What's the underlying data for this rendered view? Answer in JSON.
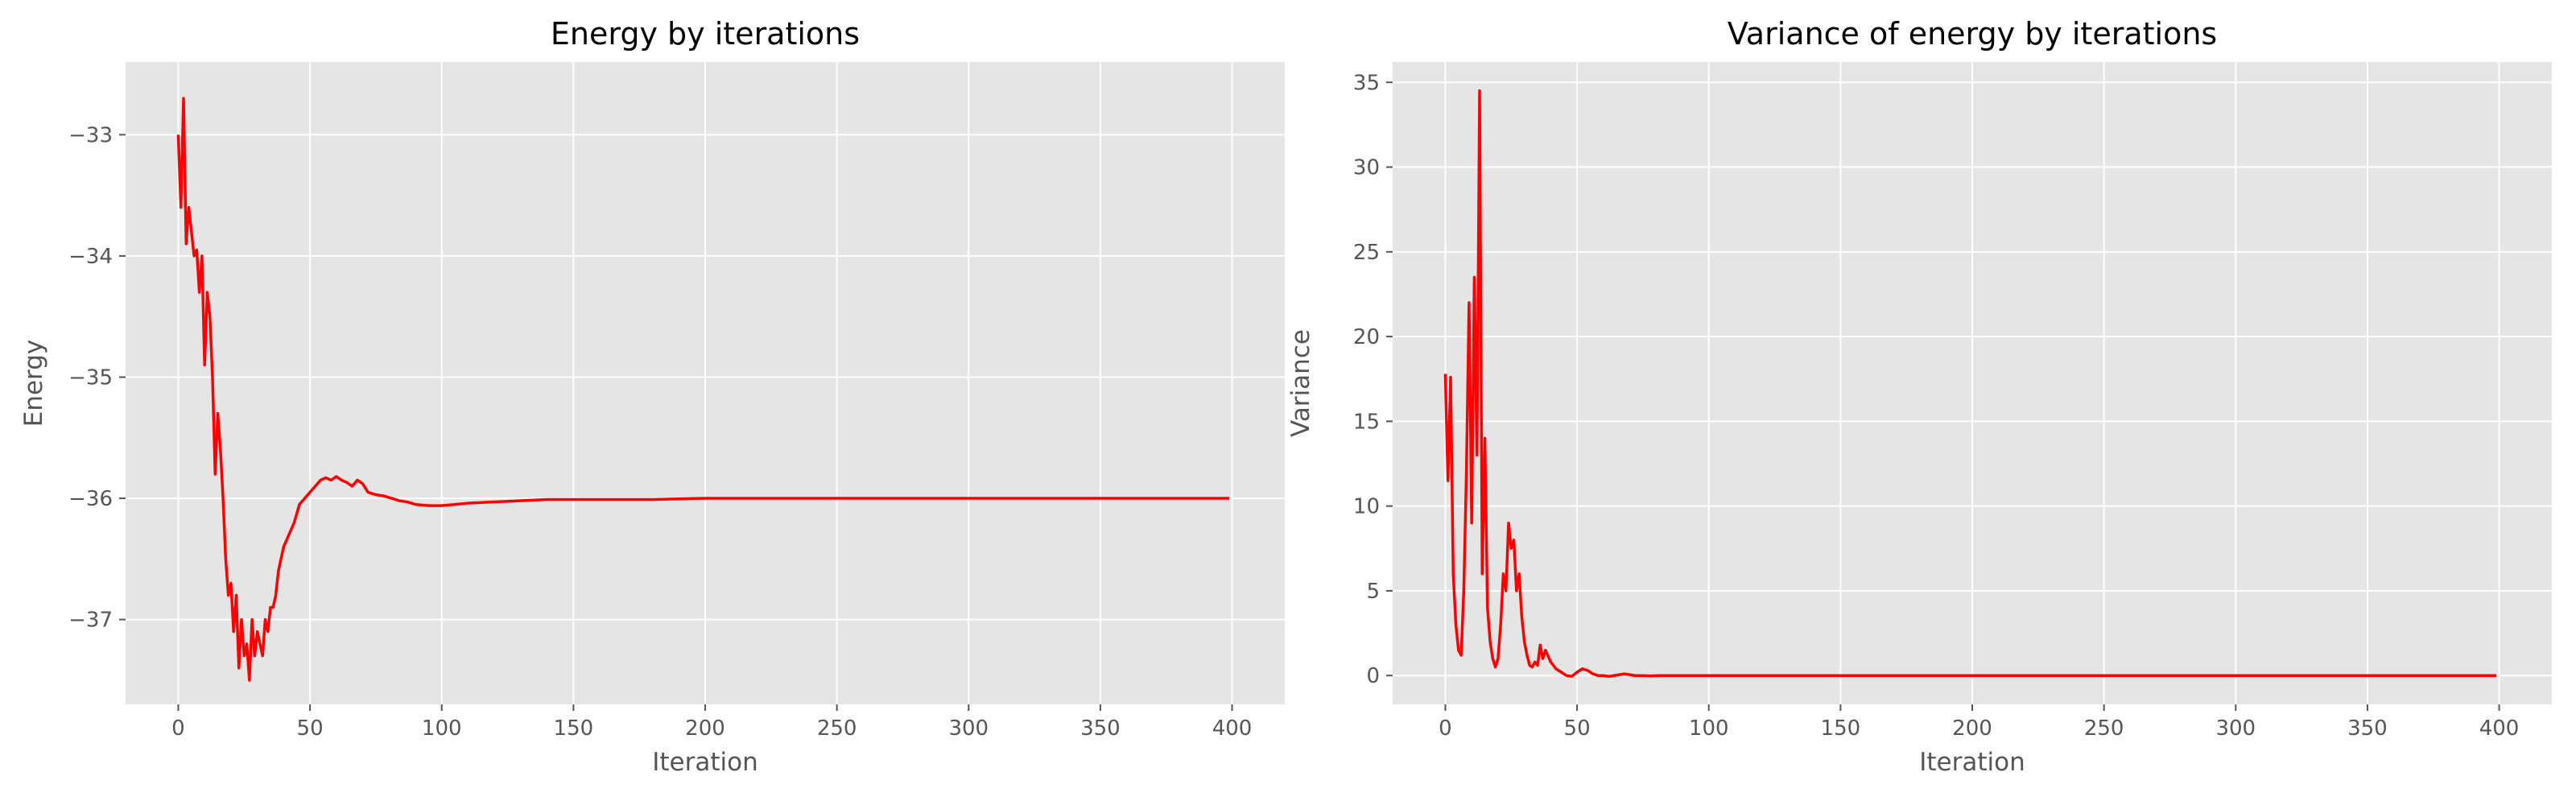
{
  "style": {
    "axes_facecolor": "#E5E5E5",
    "grid_color": "#FFFFFF",
    "line_color": "#FF0000",
    "tick_color": "#555555",
    "title_color": "#000000"
  },
  "chart_data": [
    {
      "type": "line",
      "title": "Energy by iterations",
      "xlabel": "Iteration",
      "ylabel": "Energy",
      "xlim": [
        -20,
        420
      ],
      "ylim": [
        -37.7,
        -32.4
      ],
      "xticks": [
        0,
        50,
        100,
        150,
        200,
        250,
        300,
        350,
        400
      ],
      "xtick_labels": [
        "0",
        "50",
        "100",
        "150",
        "200",
        "250",
        "300",
        "350",
        "400"
      ],
      "yticks": [
        -37,
        -36,
        -35,
        -34,
        -33
      ],
      "ytick_labels": [
        "−37",
        "−36",
        "−35",
        "−34",
        "−33"
      ],
      "grid": true,
      "series": [
        {
          "color": "#FF0000",
          "x": [
            0,
            1,
            2,
            3,
            4,
            5,
            6,
            7,
            8,
            9,
            10,
            11,
            12,
            13,
            14,
            15,
            16,
            17,
            18,
            19,
            20,
            21,
            22,
            23,
            24,
            25,
            26,
            27,
            28,
            29,
            30,
            31,
            32,
            33,
            34,
            35,
            36,
            37,
            38,
            40,
            42,
            44,
            46,
            48,
            50,
            52,
            54,
            56,
            58,
            60,
            62,
            64,
            66,
            68,
            70,
            72,
            75,
            78,
            81,
            84,
            87,
            90,
            95,
            100,
            105,
            110,
            120,
            130,
            140,
            150,
            160,
            180,
            200,
            250,
            300,
            350,
            399
          ],
          "y": [
            -33.0,
            -33.6,
            -32.7,
            -33.9,
            -33.6,
            -33.8,
            -34.0,
            -33.95,
            -34.3,
            -34.0,
            -34.9,
            -34.3,
            -34.5,
            -35.0,
            -35.8,
            -35.3,
            -35.6,
            -36.0,
            -36.5,
            -36.8,
            -36.7,
            -37.1,
            -36.8,
            -37.4,
            -37.0,
            -37.3,
            -37.2,
            -37.5,
            -37.0,
            -37.3,
            -37.1,
            -37.2,
            -37.3,
            -37.0,
            -37.1,
            -36.9,
            -36.9,
            -36.8,
            -36.6,
            -36.4,
            -36.3,
            -36.2,
            -36.05,
            -36.0,
            -35.95,
            -35.9,
            -35.85,
            -35.83,
            -35.85,
            -35.82,
            -35.85,
            -35.87,
            -35.9,
            -35.85,
            -35.88,
            -35.95,
            -35.97,
            -35.98,
            -36.0,
            -36.02,
            -36.03,
            -36.05,
            -36.06,
            -36.06,
            -36.05,
            -36.04,
            -36.03,
            -36.02,
            -36.01,
            -36.01,
            -36.01,
            -36.01,
            -36.0,
            -36.0,
            -36.0,
            -36.0,
            -36.0
          ]
        }
      ]
    },
    {
      "type": "line",
      "title": "Variance of energy by iterations",
      "xlabel": "Iteration",
      "ylabel": "Variance",
      "xlim": [
        -20,
        420
      ],
      "ylim": [
        -1.7,
        36.2
      ],
      "xticks": [
        0,
        50,
        100,
        150,
        200,
        250,
        300,
        350,
        400
      ],
      "xtick_labels": [
        "0",
        "50",
        "100",
        "150",
        "200",
        "250",
        "300",
        "350",
        "400"
      ],
      "yticks": [
        0,
        5,
        10,
        15,
        20,
        25,
        30,
        35
      ],
      "ytick_labels": [
        "0",
        "5",
        "10",
        "15",
        "20",
        "25",
        "30",
        "35"
      ],
      "grid": true,
      "series": [
        {
          "color": "#FF0000",
          "x": [
            0,
            1,
            2,
            3,
            4,
            5,
            6,
            7,
            8,
            9,
            10,
            11,
            12,
            13,
            14,
            15,
            16,
            17,
            18,
            19,
            20,
            21,
            22,
            23,
            24,
            25,
            26,
            27,
            28,
            29,
            30,
            31,
            32,
            33,
            34,
            35,
            36,
            37,
            38,
            40,
            42,
            44,
            46,
            48,
            50,
            52,
            54,
            56,
            58,
            60,
            62,
            64,
            66,
            68,
            70,
            72,
            75,
            78,
            81,
            84,
            87,
            90,
            95,
            100,
            110,
            120,
            150,
            200,
            250,
            300,
            350,
            399
          ],
          "y": [
            17.8,
            11.5,
            17.6,
            6.0,
            3.0,
            1.5,
            1.2,
            5.0,
            12.0,
            22.0,
            9.0,
            23.5,
            13.0,
            34.5,
            6.0,
            14.0,
            4.0,
            2.0,
            1.0,
            0.5,
            1.0,
            3.0,
            6.0,
            5.0,
            9.0,
            7.5,
            8.0,
            5.0,
            6.0,
            3.5,
            2.0,
            1.2,
            0.6,
            0.5,
            0.8,
            0.6,
            1.8,
            1.0,
            1.5,
            0.8,
            0.4,
            0.2,
            0.0,
            -0.05,
            0.2,
            0.4,
            0.3,
            0.1,
            0.0,
            0.0,
            -0.05,
            0.0,
            0.05,
            0.1,
            0.05,
            0.0,
            0.0,
            -0.02,
            0.0,
            0.0,
            0.0,
            0.0,
            0.0,
            0.0,
            0.0,
            0.0,
            0.0,
            0.0,
            0.0,
            0.0,
            0.0,
            0.0
          ]
        }
      ]
    }
  ]
}
